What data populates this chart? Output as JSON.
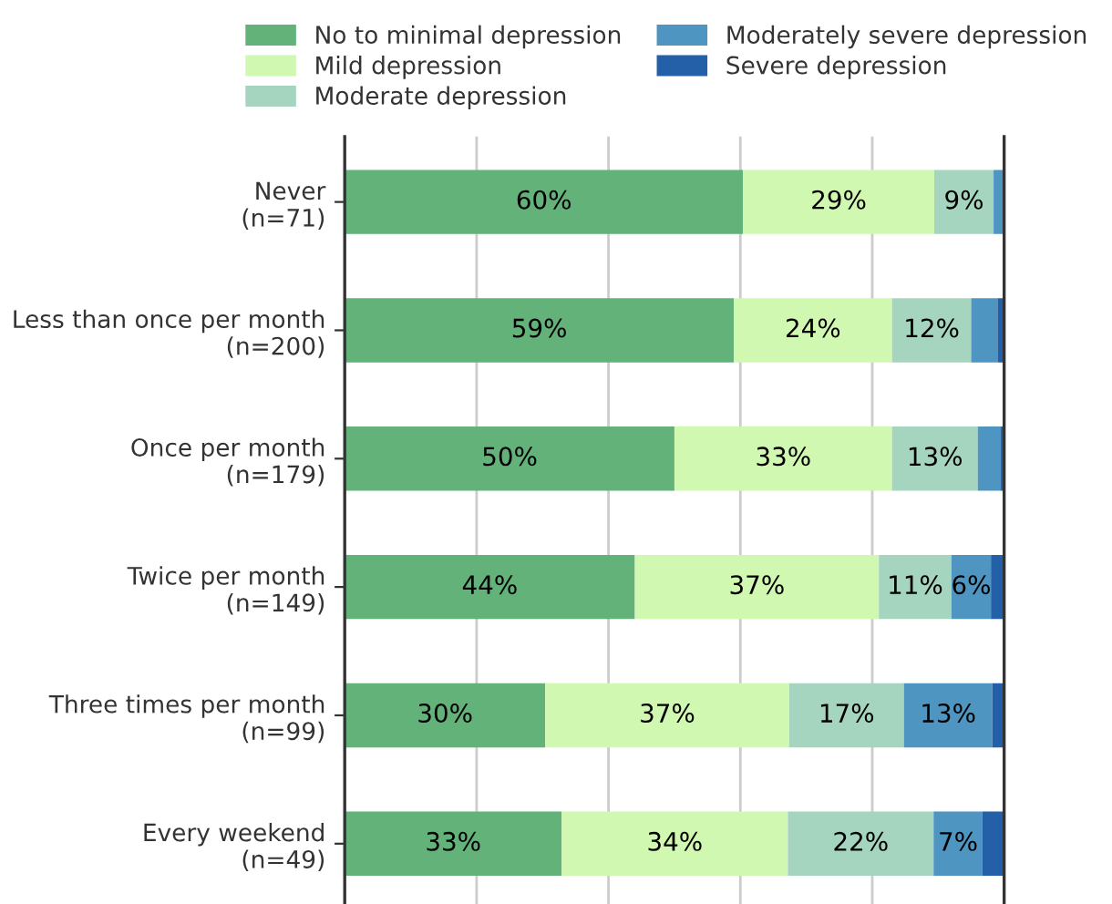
{
  "chart_data": {
    "type": "bar",
    "orientation": "horizontal",
    "stacked": true,
    "categories": [
      "Never\n(n=71)",
      "Less than once per month\n(n=200)",
      "Once per month\n(n=179)",
      "Twice per month\n(n=149)",
      "Three times per month\n(n=99)",
      "Every weekend\n(n=49)"
    ],
    "series": [
      {
        "name": "No to minimal depression",
        "color": "#62b27a",
        "values": [
          60.4,
          59,
          50,
          44,
          30.4,
          32.9
        ],
        "value_labels": [
          "60%",
          "59%",
          "50%",
          "44%",
          "30%",
          "33%"
        ]
      },
      {
        "name": "Mild depression",
        "color": "#d1f8b1",
        "values": [
          29,
          24,
          33,
          37,
          37,
          34.3
        ],
        "value_labels": [
          "29%",
          "24%",
          "33%",
          "37%",
          "37%",
          "34%"
        ]
      },
      {
        "name": "Moderate depression",
        "color": "#a6d5bf",
        "values": [
          9,
          12,
          13,
          11,
          17.4,
          22.1
        ],
        "value_labels": [
          "9%",
          "12%",
          "13%",
          "11%",
          "17%",
          "22%"
        ]
      },
      {
        "name": "Moderately severe depression",
        "color": "#4f95c2",
        "values": [
          1.4,
          4,
          3.5,
          6,
          13.4,
          7.4
        ],
        "value_labels": [
          null,
          null,
          null,
          "6%",
          "13%",
          "7%"
        ]
      },
      {
        "name": "Severe depression",
        "color": "#2460a7",
        "values": [
          0,
          1,
          0.5,
          2,
          1.8,
          3.3
        ],
        "value_labels": [
          null,
          null,
          null,
          null,
          null,
          null
        ]
      }
    ],
    "xlim": [
      0,
      100
    ],
    "xticks": [
      {
        "value": 0,
        "label": null
      },
      {
        "value": 20,
        "label": null
      },
      {
        "value": 40,
        "label": null
      },
      {
        "value": 60,
        "label": null
      },
      {
        "value": 80,
        "label": null
      },
      {
        "value": 100,
        "label": null
      }
    ],
    "grid": "x",
    "legend": "top",
    "tick_labels": "y"
  }
}
